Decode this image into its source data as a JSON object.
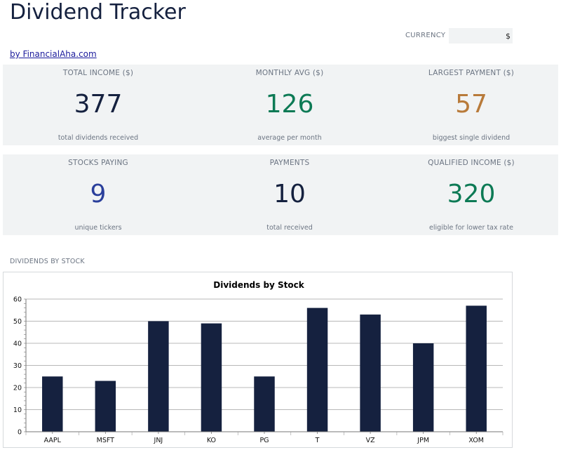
{
  "header": {
    "title": "Dividend Tracker",
    "byline": "by FinancialAha.com",
    "currency_label": "CURRENCY",
    "currency_value": "$"
  },
  "kpis_row1": [
    {
      "label": "TOTAL INCOME ($)",
      "value": "377",
      "sub": "total dividends received",
      "color": "#15213f"
    },
    {
      "label": "MONTHLY AVG ($)",
      "value": "126",
      "sub": "average per month",
      "color": "#0d7a55"
    },
    {
      "label": "LARGEST PAYMENT ($)",
      "value": "57",
      "sub": "biggest single dividend",
      "color": "#b87a3a"
    }
  ],
  "kpis_row2": [
    {
      "label": "STOCKS PAYING",
      "value": "9",
      "sub": "unique tickers",
      "color": "#2a3f9b"
    },
    {
      "label": "PAYMENTS",
      "value": "10",
      "sub": "total received",
      "color": "#15213f"
    },
    {
      "label": "QUALIFIED INCOME ($)",
      "value": "320",
      "sub": "eligible for lower tax rate",
      "color": "#0d7a55"
    }
  ],
  "section_label": "DIVIDENDS BY STOCK",
  "chart_data": {
    "type": "bar",
    "title": "Dividends by Stock",
    "categories": [
      "AAPL",
      "MSFT",
      "JNJ",
      "KO",
      "PG",
      "T",
      "VZ",
      "JPM",
      "XOM"
    ],
    "values": [
      25,
      23,
      50,
      49,
      25,
      56,
      53,
      40,
      57
    ],
    "ylim": [
      0,
      60
    ],
    "yticks": [
      0,
      10,
      20,
      30,
      40,
      50,
      60
    ],
    "grid": true,
    "bar_color": "#15213f",
    "xlabel": "",
    "ylabel": ""
  }
}
